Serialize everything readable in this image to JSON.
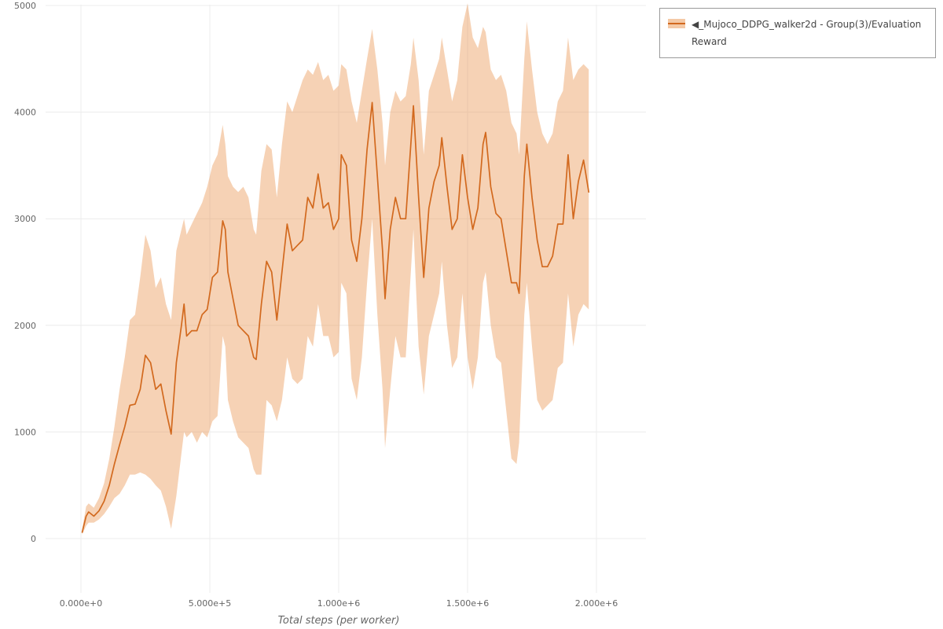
{
  "legend": {
    "label": "◀_Mujoco_DDPG_walker2d - Group(3)/Evaluation Reward"
  },
  "axes": {
    "x_title": "Total steps (per worker)"
  },
  "colors": {
    "line": "#d2691e",
    "band": "#eb9c5c",
    "grid": "#ececec",
    "tick_text": "#666666"
  },
  "chart_data": {
    "type": "line",
    "title": "",
    "xlabel": "Total steps (per worker)",
    "ylabel": "",
    "xlim": [
      0,
      2000000
    ],
    "ylim": [
      0,
      5000
    ],
    "grid": true,
    "grid_color": "#ececec",
    "tick_color": "#666666",
    "legend_position": "top-right",
    "x_ticks": {
      "values": [
        0,
        500000,
        1000000,
        1500000,
        2000000
      ],
      "labels": [
        "0.000e+0",
        "5.000e+5",
        "1.000e+6",
        "1.500e+6",
        "2.000e+6"
      ]
    },
    "y_ticks": {
      "values": [
        0,
        1000,
        2000,
        3000,
        4000,
        5000
      ],
      "labels": [
        "0",
        "1000",
        "2000",
        "3000",
        "4000",
        "5000"
      ]
    },
    "series": [
      {
        "name": "_Mujoco_DDPG_walker2d - Group(3)/Evaluation Reward",
        "color": "#d2691e",
        "band_color": "#eb9c5c",
        "band_opacity": 0.45,
        "band_meaning": "min-max envelope across 3 runs",
        "x": [
          5000,
          20000,
          30000,
          50000,
          70000,
          90000,
          110000,
          130000,
          150000,
          170000,
          190000,
          210000,
          230000,
          250000,
          270000,
          290000,
          310000,
          330000,
          350000,
          370000,
          390000,
          400000,
          410000,
          430000,
          450000,
          470000,
          490000,
          510000,
          530000,
          550000,
          560000,
          570000,
          590000,
          610000,
          630000,
          650000,
          670000,
          680000,
          700000,
          720000,
          740000,
          760000,
          780000,
          800000,
          820000,
          840000,
          860000,
          880000,
          900000,
          920000,
          940000,
          960000,
          980000,
          1000000,
          1010000,
          1030000,
          1050000,
          1070000,
          1090000,
          1110000,
          1130000,
          1150000,
          1170000,
          1180000,
          1200000,
          1220000,
          1240000,
          1260000,
          1280000,
          1290000,
          1310000,
          1330000,
          1350000,
          1370000,
          1390000,
          1400000,
          1420000,
          1440000,
          1460000,
          1480000,
          1500000,
          1520000,
          1540000,
          1560000,
          1570000,
          1590000,
          1610000,
          1630000,
          1650000,
          1670000,
          1690000,
          1700000,
          1720000,
          1730000,
          1750000,
          1770000,
          1790000,
          1810000,
          1830000,
          1850000,
          1870000,
          1890000,
          1910000,
          1930000,
          1950000,
          1970000
        ],
        "mean": [
          60,
          210,
          250,
          210,
          260,
          350,
          500,
          700,
          880,
          1050,
          1250,
          1260,
          1400,
          1720,
          1650,
          1400,
          1450,
          1200,
          980,
          1650,
          2000,
          2200,
          1900,
          1950,
          1950,
          2100,
          2150,
          2450,
          2500,
          2980,
          2900,
          2500,
          2250,
          2000,
          1950,
          1900,
          1700,
          1680,
          2200,
          2600,
          2500,
          2050,
          2500,
          2950,
          2700,
          2750,
          2800,
          3200,
          3100,
          3420,
          3100,
          3150,
          2900,
          3000,
          3600,
          3500,
          2800,
          2600,
          3000,
          3650,
          4090,
          3400,
          2700,
          2250,
          2900,
          3200,
          3000,
          3000,
          3700,
          4060,
          3200,
          2450,
          3100,
          3350,
          3500,
          3760,
          3300,
          2900,
          3000,
          3600,
          3200,
          2900,
          3100,
          3700,
          3810,
          3300,
          3050,
          3000,
          2700,
          2400,
          2400,
          2300,
          3400,
          3700,
          3200,
          2800,
          2550,
          2550,
          2650,
          2950,
          2950,
          3600,
          3000,
          3350,
          3550,
          3250
        ],
        "low": [
          40,
          120,
          150,
          150,
          180,
          230,
          300,
          380,
          420,
          500,
          600,
          600,
          620,
          600,
          560,
          500,
          450,
          300,
          90,
          400,
          800,
          1000,
          950,
          1000,
          900,
          1000,
          950,
          1100,
          1150,
          1900,
          1800,
          1300,
          1100,
          950,
          900,
          850,
          650,
          600,
          600,
          1300,
          1250,
          1100,
          1300,
          1700,
          1500,
          1450,
          1500,
          1900,
          1800,
          2200,
          1900,
          1900,
          1700,
          1750,
          2400,
          2300,
          1500,
          1300,
          1700,
          2400,
          3000,
          2100,
          1400,
          850,
          1400,
          1900,
          1700,
          1700,
          2500,
          2900,
          1800,
          1350,
          1900,
          2100,
          2300,
          2600,
          2000,
          1600,
          1700,
          2300,
          1700,
          1400,
          1700,
          2400,
          2500,
          2000,
          1700,
          1650,
          1200,
          750,
          700,
          900,
          2100,
          2400,
          1800,
          1300,
          1200,
          1250,
          1300,
          1600,
          1650,
          2300,
          1800,
          2100,
          2200,
          2150
        ],
        "high": [
          90,
          300,
          330,
          290,
          380,
          520,
          750,
          1050,
          1400,
          1700,
          2050,
          2100,
          2450,
          2850,
          2700,
          2350,
          2450,
          2200,
          2050,
          2700,
          2900,
          3000,
          2850,
          2950,
          3050,
          3150,
          3300,
          3500,
          3600,
          3880,
          3700,
          3400,
          3300,
          3250,
          3300,
          3200,
          2900,
          2850,
          3450,
          3700,
          3650,
          3200,
          3700,
          4100,
          4000,
          4150,
          4300,
          4400,
          4350,
          4470,
          4300,
          4350,
          4200,
          4250,
          4450,
          4400,
          4100,
          3900,
          4200,
          4500,
          4780,
          4400,
          3900,
          3500,
          4000,
          4200,
          4100,
          4150,
          4450,
          4700,
          4300,
          3600,
          4200,
          4350,
          4500,
          4700,
          4400,
          4100,
          4300,
          4800,
          5020,
          4700,
          4600,
          4800,
          4750,
          4400,
          4300,
          4350,
          4200,
          3900,
          3800,
          3600,
          4500,
          4850,
          4400,
          4000,
          3800,
          3700,
          3800,
          4100,
          4200,
          4700,
          4300,
          4400,
          4450,
          4400
        ]
      }
    ]
  }
}
